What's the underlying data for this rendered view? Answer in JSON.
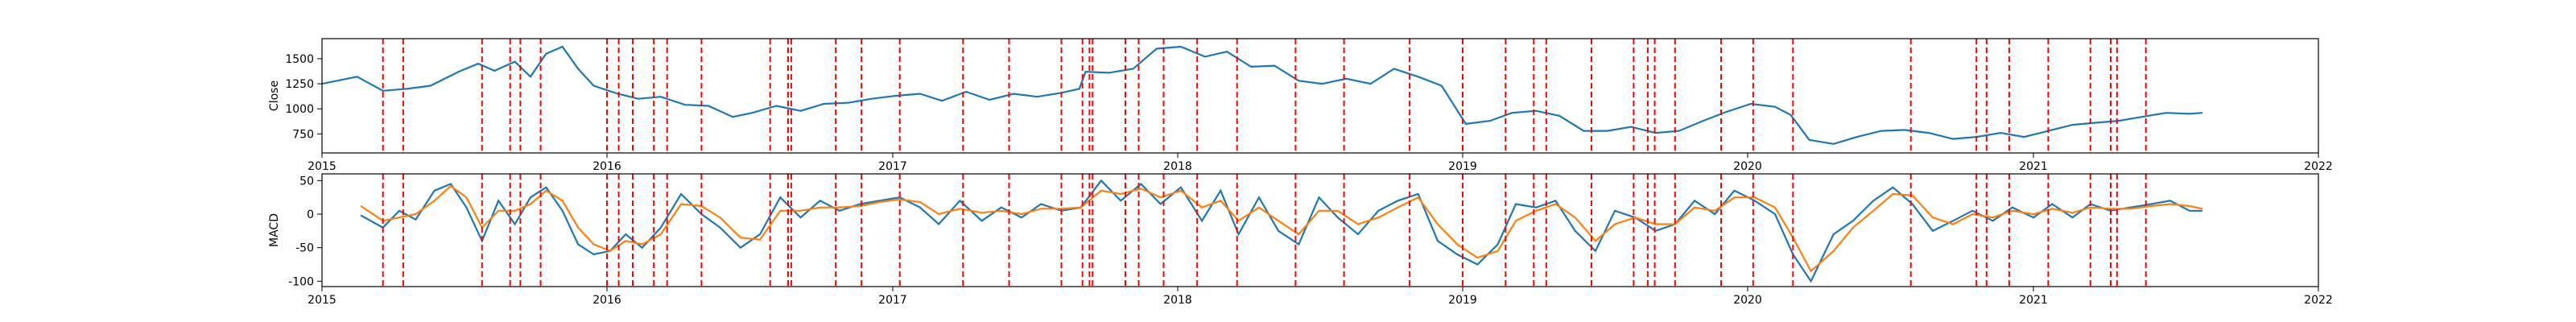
{
  "chart_data": [
    {
      "type": "line",
      "ylabel": "Close",
      "xlabel": "",
      "x_tick_labels": [
        "2015",
        "2016",
        "2017",
        "2018",
        "2019",
        "2020",
        "2021",
        "2022"
      ],
      "y_tick_labels": [
        "750",
        "1000",
        "1250",
        "1500"
      ],
      "xlim": [
        "2015-01-01",
        "2022-01-01"
      ],
      "ylim": [
        560,
        1700
      ],
      "series": [
        {
          "color": "#1f77b4",
          "x": [
            "2015-01-01",
            "2015-02-15",
            "2015-03-20",
            "2015-04-20",
            "2015-05-20",
            "2015-06-25",
            "2015-07-20",
            "2015-08-10",
            "2015-09-05",
            "2015-09-25",
            "2015-10-15",
            "2015-11-05",
            "2015-11-25",
            "2015-12-15",
            "2016-01-15",
            "2016-02-10",
            "2016-03-10",
            "2016-04-10",
            "2016-05-10",
            "2016-06-10",
            "2016-07-05",
            "2016-08-05",
            "2016-09-05",
            "2016-10-05",
            "2016-11-05",
            "2016-12-05",
            "2017-01-05",
            "2017-02-05",
            "2017-03-05",
            "2017-04-05",
            "2017-05-05",
            "2017-06-05",
            "2017-07-05",
            "2017-08-05",
            "2017-08-28",
            "2017-09-05",
            "2017-10-05",
            "2017-11-05",
            "2017-12-05",
            "2018-01-05",
            "2018-02-05",
            "2018-03-05",
            "2018-04-05",
            "2018-05-05",
            "2018-06-05",
            "2018-07-05",
            "2018-08-05",
            "2018-09-05",
            "2018-10-05",
            "2018-11-05",
            "2018-12-05",
            "2019-01-05",
            "2019-02-05",
            "2019-03-05",
            "2019-04-05",
            "2019-05-05",
            "2019-06-05",
            "2019-07-05",
            "2019-08-05",
            "2019-09-05",
            "2019-10-05",
            "2019-11-05",
            "2019-12-05",
            "2020-01-05",
            "2020-02-05",
            "2020-02-25",
            "2020-03-20",
            "2020-04-20",
            "2020-05-20",
            "2020-06-20",
            "2020-07-20",
            "2020-08-20",
            "2020-09-20",
            "2020-10-20",
            "2020-11-20",
            "2020-12-20",
            "2021-01-20",
            "2021-02-20",
            "2021-03-20",
            "2021-04-20",
            "2021-05-20",
            "2021-06-20",
            "2021-07-20",
            "2021-08-05"
          ],
          "values": [
            1250,
            1320,
            1180,
            1200,
            1230,
            1370,
            1450,
            1380,
            1470,
            1320,
            1550,
            1620,
            1400,
            1230,
            1150,
            1100,
            1120,
            1040,
            1030,
            920,
            960,
            1030,
            980,
            1050,
            1060,
            1100,
            1130,
            1150,
            1080,
            1170,
            1090,
            1150,
            1120,
            1160,
            1200,
            1370,
            1360,
            1400,
            1600,
            1620,
            1520,
            1570,
            1420,
            1430,
            1280,
            1250,
            1300,
            1250,
            1400,
            1320,
            1230,
            850,
            880,
            960,
            980,
            930,
            780,
            780,
            820,
            760,
            780,
            880,
            970,
            1050,
            1020,
            940,
            690,
            650,
            720,
            780,
            790,
            760,
            700,
            720,
            760,
            720,
            780,
            840,
            860,
            880,
            920,
            960,
            950,
            960
          ]
        }
      ]
    },
    {
      "type": "line",
      "ylabel": "MACD",
      "xlabel": "",
      "x_tick_labels": [
        "2015",
        "2016",
        "2017",
        "2018",
        "2019",
        "2020",
        "2021",
        "2022"
      ],
      "y_tick_labels": [
        "50",
        "0",
        "-50",
        "-100"
      ],
      "xlim": [
        "2015-01-01",
        "2022-01-01"
      ],
      "ylim": [
        -108,
        60
      ],
      "series": [
        {
          "color": "#1f77b4",
          "x": [
            "2015-02-20",
            "2015-03-20",
            "2015-04-10",
            "2015-05-01",
            "2015-05-25",
            "2015-06-15",
            "2015-07-05",
            "2015-07-25",
            "2015-08-15",
            "2015-09-05",
            "2015-09-25",
            "2015-10-15",
            "2015-11-05",
            "2015-11-25",
            "2015-12-15",
            "2016-01-05",
            "2016-01-25",
            "2016-02-15",
            "2016-03-10",
            "2016-04-05",
            "2016-05-01",
            "2016-05-25",
            "2016-06-20",
            "2016-07-15",
            "2016-08-10",
            "2016-09-05",
            "2016-09-30",
            "2016-10-25",
            "2016-11-20",
            "2016-12-15",
            "2017-01-10",
            "2017-02-05",
            "2017-03-01",
            "2017-03-28",
            "2017-04-25",
            "2017-05-20",
            "2017-06-15",
            "2017-07-10",
            "2017-08-05",
            "2017-08-30",
            "2017-09-25",
            "2017-10-20",
            "2017-11-15",
            "2017-12-10",
            "2018-01-05",
            "2018-02-01",
            "2018-02-25",
            "2018-03-20",
            "2018-04-15",
            "2018-05-10",
            "2018-06-05",
            "2018-07-01",
            "2018-07-25",
            "2018-08-20",
            "2018-09-15",
            "2018-10-10",
            "2018-11-05",
            "2018-11-30",
            "2018-12-25",
            "2019-01-20",
            "2019-02-15",
            "2019-03-10",
            "2019-04-05",
            "2019-04-30",
            "2019-05-25",
            "2019-06-20",
            "2019-07-15",
            "2019-08-10",
            "2019-09-05",
            "2019-09-30",
            "2019-10-25",
            "2019-11-20",
            "2019-12-15",
            "2020-01-10",
            "2020-02-05",
            "2020-02-28",
            "2020-03-22",
            "2020-04-20",
            "2020-05-15",
            "2020-06-10",
            "2020-07-05",
            "2020-07-30",
            "2020-08-25",
            "2020-09-20",
            "2020-10-15",
            "2020-11-10",
            "2020-12-05",
            "2021-01-01",
            "2021-01-25",
            "2021-02-20",
            "2021-03-15",
            "2021-04-10",
            "2021-05-05",
            "2021-06-01",
            "2021-06-25",
            "2021-07-20",
            "2021-08-05"
          ],
          "values": [
            -2,
            -20,
            5,
            -8,
            35,
            45,
            10,
            -40,
            20,
            -15,
            25,
            40,
            5,
            -45,
            -60,
            -55,
            -30,
            -50,
            -20,
            30,
            0,
            -20,
            -50,
            -30,
            25,
            -5,
            20,
            5,
            15,
            20,
            25,
            10,
            -15,
            20,
            -10,
            10,
            -5,
            15,
            5,
            10,
            50,
            20,
            45,
            15,
            40,
            -10,
            35,
            -30,
            25,
            -25,
            -45,
            25,
            -5,
            -30,
            5,
            20,
            30,
            -40,
            -60,
            -75,
            -45,
            15,
            10,
            20,
            -25,
            -55,
            5,
            -5,
            -25,
            -15,
            20,
            0,
            35,
            20,
            0,
            -60,
            -100,
            -30,
            -10,
            20,
            40,
            15,
            -25,
            -10,
            5,
            -10,
            10,
            -5,
            15,
            -5,
            15,
            5,
            10,
            15,
            20,
            5,
            5
          ]
        },
        {
          "color": "#ff7f0e",
          "x": [
            "2015-02-20",
            "2015-03-20",
            "2015-04-10",
            "2015-05-01",
            "2015-05-25",
            "2015-06-15",
            "2015-07-05",
            "2015-07-25",
            "2015-08-15",
            "2015-09-05",
            "2015-09-25",
            "2015-10-15",
            "2015-11-05",
            "2015-11-25",
            "2015-12-15",
            "2016-01-05",
            "2016-01-25",
            "2016-02-15",
            "2016-03-10",
            "2016-04-05",
            "2016-05-01",
            "2016-05-25",
            "2016-06-20",
            "2016-07-15",
            "2016-08-10",
            "2016-09-05",
            "2016-09-30",
            "2016-10-25",
            "2016-11-20",
            "2016-12-15",
            "2017-01-10",
            "2017-02-05",
            "2017-03-01",
            "2017-03-28",
            "2017-04-25",
            "2017-05-20",
            "2017-06-15",
            "2017-07-10",
            "2017-08-05",
            "2017-08-30",
            "2017-09-25",
            "2017-10-20",
            "2017-11-15",
            "2017-12-10",
            "2018-01-05",
            "2018-02-01",
            "2018-02-25",
            "2018-03-20",
            "2018-04-15",
            "2018-05-10",
            "2018-06-05",
            "2018-07-01",
            "2018-07-25",
            "2018-08-20",
            "2018-09-15",
            "2018-10-10",
            "2018-11-05",
            "2018-11-30",
            "2018-12-25",
            "2019-01-20",
            "2019-02-15",
            "2019-03-10",
            "2019-04-05",
            "2019-04-30",
            "2019-05-25",
            "2019-06-20",
            "2019-07-15",
            "2019-08-10",
            "2019-09-05",
            "2019-09-30",
            "2019-10-25",
            "2019-11-20",
            "2019-12-15",
            "2020-01-10",
            "2020-02-05",
            "2020-02-28",
            "2020-03-22",
            "2020-04-20",
            "2020-05-15",
            "2020-06-10",
            "2020-07-05",
            "2020-07-30",
            "2020-08-25",
            "2020-09-20",
            "2020-10-15",
            "2020-11-10",
            "2020-12-05",
            "2021-01-01",
            "2021-01-25",
            "2021-02-20",
            "2021-03-15",
            "2021-04-10",
            "2021-05-05",
            "2021-06-01",
            "2021-06-25",
            "2021-07-20",
            "2021-08-05"
          ],
          "values": [
            12,
            -10,
            -5,
            0,
            20,
            42,
            25,
            -20,
            5,
            5,
            15,
            35,
            20,
            -20,
            -45,
            -55,
            -40,
            -45,
            -30,
            15,
            12,
            -5,
            -35,
            -38,
            5,
            5,
            10,
            10,
            12,
            18,
            22,
            18,
            0,
            8,
            2,
            5,
            0,
            8,
            8,
            10,
            35,
            30,
            38,
            25,
            35,
            10,
            20,
            -10,
            10,
            -10,
            -30,
            5,
            5,
            -15,
            -5,
            10,
            25,
            -15,
            -45,
            -65,
            -55,
            -10,
            5,
            15,
            -5,
            -40,
            -15,
            -5,
            -15,
            -15,
            10,
            5,
            25,
            25,
            10,
            -35,
            -85,
            -55,
            -20,
            5,
            30,
            28,
            -5,
            -15,
            0,
            -5,
            5,
            0,
            8,
            2,
            10,
            8,
            8,
            12,
            15,
            12,
            8
          ]
        }
      ]
    }
  ],
  "event_dates": [
    "2015-03-20",
    "2015-04-15",
    "2015-07-25",
    "2015-08-30",
    "2015-09-12",
    "2015-10-08",
    "2016-01-01",
    "2016-01-16",
    "2016-02-03",
    "2016-03-01",
    "2016-03-18",
    "2016-05-01",
    "2016-07-28",
    "2016-08-20",
    "2016-08-24",
    "2016-10-20",
    "2016-11-22",
    "2017-01-10",
    "2017-04-01",
    "2017-05-30",
    "2017-08-05",
    "2017-09-01",
    "2017-09-10",
    "2017-09-14",
    "2017-10-26",
    "2017-11-12",
    "2017-12-14",
    "2018-01-26",
    "2018-03-18",
    "2018-06-01",
    "2018-08-02",
    "2018-10-25",
    "2019-01-01",
    "2019-02-25",
    "2019-04-02",
    "2019-04-18",
    "2019-06-15",
    "2019-08-08",
    "2019-08-26",
    "2019-09-04",
    "2019-09-30",
    "2019-11-28",
    "2020-01-08",
    "2020-02-28",
    "2020-07-28",
    "2020-10-20",
    "2020-11-02",
    "2020-12-01",
    "2021-01-20",
    "2021-03-15",
    "2021-04-10",
    "2021-04-18",
    "2021-05-25"
  ]
}
